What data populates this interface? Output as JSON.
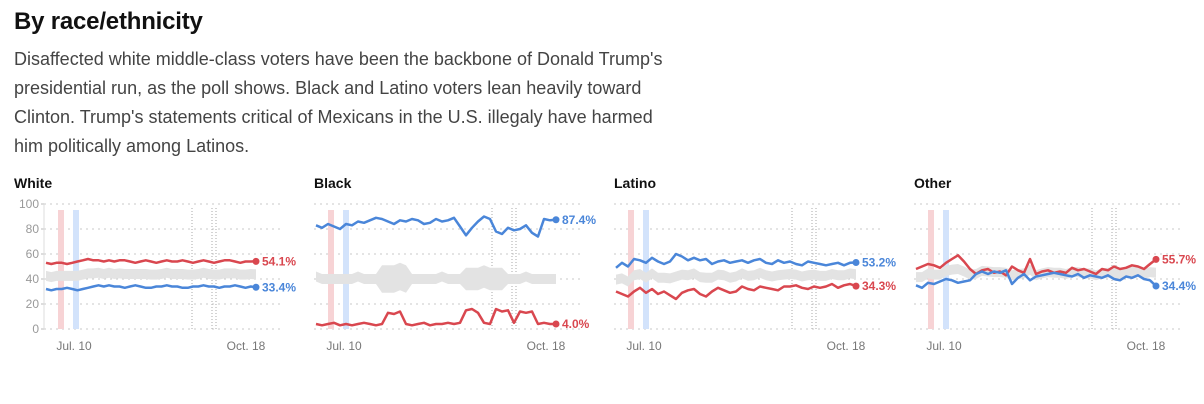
{
  "header": {
    "title": "By race/ethnicity",
    "intro": "Disaffected white middle-class voters have been the backbone of Donald Trump's presidential run, as the poll shows. Black and Latino voters lean heavily toward Clinton. Trump's statements critical of Mexicans in the U.S. illegaly have harmed him politically among Latinos."
  },
  "colors": {
    "trump": "#d9474f",
    "clinton": "#4a86d9",
    "band": "#e3e3e3",
    "convention_trump": "#f7d3d5",
    "convention_clinton": "#d3e3fb"
  },
  "chart_data": [
    {
      "type": "line",
      "title": "White",
      "ylim": [
        0,
        100
      ],
      "yticks": [
        0,
        20,
        40,
        60,
        80,
        100
      ],
      "xticklabels": [
        "Jul. 10",
        "Oct. 18"
      ],
      "grid": true,
      "series": [
        {
          "values": [
            53,
            52,
            53,
            53,
            52,
            53,
            54,
            55,
            56,
            55,
            55,
            54,
            55,
            54,
            55,
            55,
            54,
            53,
            54,
            55,
            54,
            53,
            54,
            55,
            54,
            54,
            55,
            54,
            53,
            54,
            55,
            54,
            53,
            54,
            55,
            55,
            54,
            53,
            54,
            54,
            54.1
          ],
          "end_label": "54.1%"
        },
        {
          "values": [
            32,
            31,
            32,
            32,
            33,
            32,
            31,
            32,
            33,
            34,
            35,
            34,
            35,
            34,
            34,
            33,
            34,
            35,
            34,
            33,
            33,
            34,
            34,
            35,
            34,
            34,
            33,
            33,
            34,
            34,
            35,
            34,
            34,
            33,
            34,
            34,
            35,
            34,
            33,
            34,
            33.4
          ],
          "end_label": "33.4%"
        }
      ]
    },
    {
      "type": "line",
      "title": "Black",
      "ylim": [
        0,
        100
      ],
      "yticks": [
        0,
        20,
        40,
        60,
        80,
        100
      ],
      "xticklabels": [
        "Jul. 10",
        "Oct. 18"
      ],
      "grid": true,
      "series": [
        {
          "values": [
            4,
            3,
            4,
            5,
            3,
            4,
            3,
            4,
            5,
            4,
            3,
            4,
            13,
            12,
            14,
            4,
            3,
            4,
            5,
            3,
            4,
            4,
            5,
            4,
            5,
            15,
            16,
            13,
            5,
            4,
            16,
            14,
            15,
            5,
            14,
            13,
            14,
            4,
            5,
            4,
            4.0
          ],
          "end_label": "4.0%"
        },
        {
          "values": [
            83,
            81,
            84,
            82,
            80,
            84,
            83,
            86,
            85,
            87,
            89,
            88,
            86,
            84,
            87,
            86,
            88,
            87,
            84,
            85,
            88,
            86,
            87,
            89,
            82,
            75,
            81,
            86,
            90,
            88,
            78,
            76,
            81,
            79,
            80,
            83,
            77,
            74,
            88,
            87,
            87.4
          ],
          "end_label": "87.4%"
        }
      ]
    },
    {
      "type": "line",
      "title": "Latino",
      "ylim": [
        0,
        100
      ],
      "yticks": [
        0,
        20,
        40,
        60,
        80,
        100
      ],
      "xticklabels": [
        "Jul. 10",
        "Oct. 18"
      ],
      "grid": true,
      "series": [
        {
          "values": [
            30,
            28,
            26,
            30,
            33,
            29,
            32,
            28,
            30,
            27,
            24,
            29,
            31,
            32,
            28,
            26,
            30,
            33,
            31,
            29,
            30,
            34,
            32,
            31,
            34,
            33,
            32,
            31,
            34,
            34,
            35,
            33,
            32,
            34,
            33,
            34,
            36,
            33,
            35,
            36,
            34.3
          ],
          "end_label": "34.3%"
        },
        {
          "values": [
            49,
            53,
            50,
            56,
            55,
            53,
            57,
            54,
            52,
            54,
            60,
            58,
            55,
            57,
            55,
            56,
            52,
            54,
            55,
            53,
            54,
            55,
            53,
            55,
            56,
            53,
            52,
            55,
            53,
            54,
            52,
            51,
            54,
            53,
            52,
            51,
            52,
            53,
            51,
            53,
            53.2
          ],
          "end_label": "53.2%"
        }
      ]
    },
    {
      "type": "line",
      "title": "Other",
      "ylim": [
        0,
        100
      ],
      "yticks": [
        0,
        20,
        40,
        60,
        80,
        100
      ],
      "xticklabels": [
        "Jul. 10",
        "Oct. 18"
      ],
      "grid": true,
      "series": [
        {
          "values": [
            48,
            50,
            52,
            51,
            49,
            53,
            56,
            59,
            54,
            48,
            44,
            47,
            48,
            45,
            46,
            43,
            50,
            47,
            45,
            56,
            44,
            46,
            47,
            45,
            46,
            45,
            49,
            47,
            48,
            46,
            44,
            48,
            47,
            50,
            48,
            49,
            51,
            50,
            48,
            52,
            55.7
          ],
          "end_label": "55.7%"
        },
        {
          "values": [
            35,
            33,
            37,
            36,
            38,
            40,
            39,
            37,
            38,
            39,
            44,
            46,
            44,
            46,
            45,
            47,
            36,
            41,
            44,
            39,
            42,
            43,
            44,
            45,
            44,
            43,
            42,
            44,
            41,
            43,
            42,
            41,
            43,
            40,
            39,
            42,
            41,
            43,
            40,
            39,
            34.4
          ],
          "end_label": "34.4%"
        }
      ]
    }
  ]
}
